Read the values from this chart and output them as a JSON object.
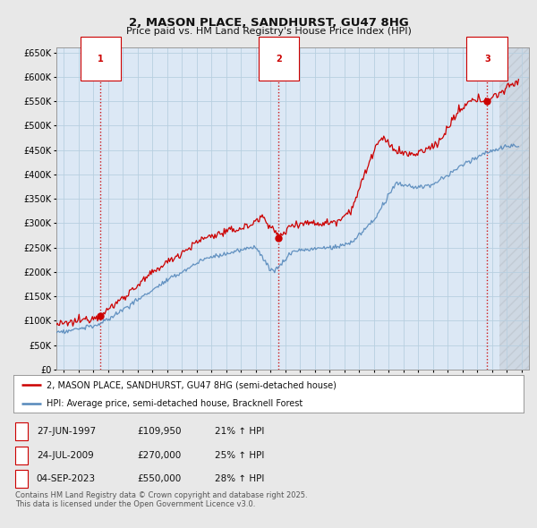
{
  "title": "2, MASON PLACE, SANDHURST, GU47 8HG",
  "subtitle": "Price paid vs. HM Land Registry's House Price Index (HPI)",
  "background_color": "#e8e8e8",
  "plot_bg_color": "#dce8f5",
  "grid_color": "#b8cfe0",
  "ylim": [
    0,
    660000
  ],
  "yticks": [
    0,
    50000,
    100000,
    150000,
    200000,
    250000,
    300000,
    350000,
    400000,
    450000,
    500000,
    550000,
    600000,
    650000
  ],
  "xlim_start": 1994.5,
  "xlim_end": 2026.5,
  "red_line_color": "#cc0000",
  "blue_line_color": "#5588bb",
  "sale_marker_color": "#cc0000",
  "vline_color": "#cc0000",
  "transaction_vline_style": "--",
  "transactions": [
    {
      "label": "1",
      "date_num": 1997.49,
      "price": 109950,
      "date_str": "27-JUN-1997"
    },
    {
      "label": "2",
      "date_num": 2009.56,
      "price": 270000,
      "date_str": "24-JUL-2009"
    },
    {
      "label": "3",
      "date_num": 2023.67,
      "price": 550000,
      "date_str": "04-SEP-2023"
    }
  ],
  "legend_entry1": "2, MASON PLACE, SANDHURST, GU47 8HG (semi-detached house)",
  "legend_entry2": "HPI: Average price, semi-detached house, Bracknell Forest",
  "footer1": "Contains HM Land Registry data © Crown copyright and database right 2025.",
  "footer2": "This data is licensed under the Open Government Licence v3.0.",
  "table_rows": [
    [
      "1",
      "27-JUN-1997",
      "£109,950",
      "21% ↑ HPI"
    ],
    [
      "2",
      "24-JUL-2009",
      "£270,000",
      "25% ↑ HPI"
    ],
    [
      "3",
      "04-SEP-2023",
      "£550,000",
      "28% ↑ HPI"
    ]
  ]
}
